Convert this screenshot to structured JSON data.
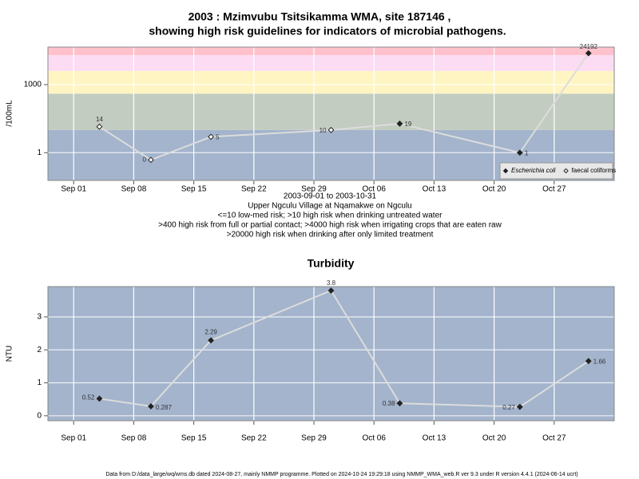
{
  "chart_data": [
    {
      "type": "line",
      "title": "2003 : Mzimvubu Tsitsikamma WMA, site 187146 ,",
      "subtitle": "showing high risk guidelines for indicators of microbial pathogens.",
      "y_label": "/100mL",
      "log_scale": true,
      "x": [
        "2003-09-04",
        "2003-09-10",
        "2003-09-17",
        "2003-10-01",
        "2003-10-09",
        "2003-10-23",
        "2003-10-31"
      ],
      "series": [
        {
          "name": "Escherichia coli",
          "marker": "filled",
          "color": "#222222",
          "values": [
            null,
            null,
            null,
            null,
            19,
            1,
            24192
          ]
        },
        {
          "name": "faecal coliforms",
          "marker": "open",
          "color": "#222222",
          "values": [
            14,
            0,
            5,
            10,
            null,
            null,
            null
          ]
        }
      ],
      "line_color": "#dcdcdc",
      "xlim": [
        "2003-08-29",
        "2003-11-03"
      ],
      "xticks": [
        {
          "value": "2003-09-01",
          "label": "Sep 01"
        },
        {
          "value": "2003-09-08",
          "label": "Sep 08"
        },
        {
          "value": "2003-09-15",
          "label": "Sep 15"
        },
        {
          "value": "2003-09-22",
          "label": "Sep 22"
        },
        {
          "value": "2003-09-29",
          "label": "Sep 29"
        },
        {
          "value": "2003-10-06",
          "label": "Oct 06"
        },
        {
          "value": "2003-10-13",
          "label": "Oct 13"
        },
        {
          "value": "2003-10-20",
          "label": "Oct 20"
        },
        {
          "value": "2003-10-27",
          "label": "Oct 27"
        }
      ],
      "ylim": [
        0.06,
        45000
      ],
      "yticks": [
        1,
        1000
      ],
      "band_limits": [
        10,
        400,
        4000,
        20000
      ],
      "band_colors": [
        "#a3b4cc",
        "#c3ccc0",
        "#fff5c3",
        "#fcdcf2",
        "#ffc2cc"
      ],
      "grid": true,
      "legend": "bottom right",
      "notes": [
        "2003-09-01 to 2003-10-31",
        "Upper Ngculu Village at Nqamakwe on Ngculu",
        "<=10 low-med risk; >10 high risk when drinking untreated water",
        ">400 high risk from full or partial contact; >4000 high risk when irrigating crops that are eaten raw",
        ">20000 high risk when drinking after only limited treatment"
      ]
    },
    {
      "type": "line",
      "title": "Turbidity",
      "y_label": "NTU",
      "log_scale": false,
      "x": [
        "2003-09-04",
        "2003-09-10",
        "2003-09-17",
        "2003-10-01",
        "2003-10-09",
        "2003-10-23",
        "2003-10-31"
      ],
      "values": [
        0.52,
        0.287,
        2.29,
        3.8,
        0.38,
        0.27,
        1.66
      ],
      "color": "#222222",
      "line_color": "#dcdcdc",
      "background": "#a3b4cc",
      "xlim": [
        "2003-08-29",
        "2003-11-03"
      ],
      "xticks": [
        {
          "value": "2003-09-01",
          "label": "Sep 01"
        },
        {
          "value": "2003-09-08",
          "label": "Sep 08"
        },
        {
          "value": "2003-09-15",
          "label": "Sep 15"
        },
        {
          "value": "2003-09-22",
          "label": "Sep 22"
        },
        {
          "value": "2003-09-29",
          "label": "Sep 29"
        },
        {
          "value": "2003-10-06",
          "label": "Oct 06"
        },
        {
          "value": "2003-10-13",
          "label": "Oct 13"
        },
        {
          "value": "2003-10-20",
          "label": "Oct 20"
        },
        {
          "value": "2003-10-27",
          "label": "Oct 27"
        }
      ],
      "ylim": [
        -0.15,
        3.92
      ],
      "yticks": [
        0,
        1,
        2,
        3
      ],
      "grid": true
    }
  ],
  "footer": "Data from D:/data_large/wq/wms.db dated 2024-08-27, mainly NMMP programme. Plotted on 2024-10-24 19:29:18 using NMMP_WMA_web.R ver 9.3 under R version 4.4.1 (2024-06-14 ucrt)"
}
